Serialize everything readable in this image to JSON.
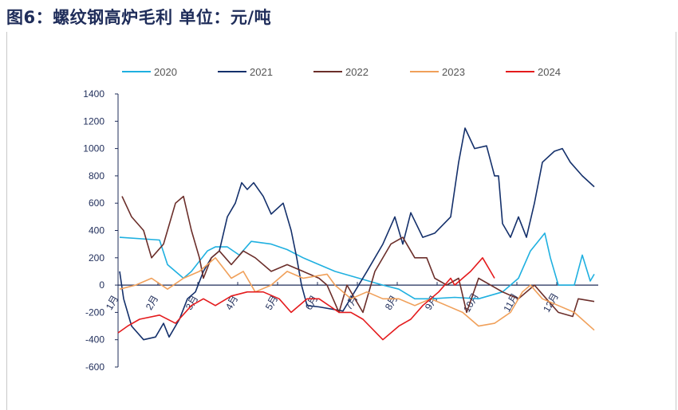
{
  "title": "图6：螺纹钢高炉毛利   单位：元/吨",
  "chart_data": {
    "type": "line",
    "title": "图6：螺纹钢高炉毛利   单位：元/吨",
    "xlabel": "",
    "ylabel": "",
    "ylim": [
      -600,
      1400
    ],
    "yticks": [
      1400,
      1200,
      1000,
      800,
      600,
      400,
      200,
      0,
      -200,
      -400,
      -600
    ],
    "xlim": [
      1,
      13
    ],
    "x_tick_labels": [
      "1月",
      "2月",
      "3月",
      "4月",
      "5月",
      "6月",
      "7月",
      "8月",
      "9月",
      "10月",
      "11月",
      "12月"
    ],
    "grid": false,
    "legend_position": "top",
    "series": [
      {
        "name": "2020",
        "color": "#1fb0e0",
        "points": [
          [
            1.04,
            350
          ],
          [
            2.04,
            330
          ],
          [
            2.24,
            150
          ],
          [
            2.64,
            50
          ],
          [
            2.84,
            100
          ],
          [
            3.24,
            250
          ],
          [
            3.44,
            280
          ],
          [
            3.74,
            280
          ],
          [
            4.04,
            220
          ],
          [
            4.34,
            320
          ],
          [
            4.84,
            300
          ],
          [
            5.24,
            260
          ],
          [
            5.64,
            200
          ],
          [
            6.04,
            150
          ],
          [
            6.44,
            100
          ],
          [
            7.04,
            50
          ],
          [
            7.64,
            0
          ],
          [
            8.04,
            -30
          ],
          [
            8.44,
            -100
          ],
          [
            8.84,
            -100
          ],
          [
            9.44,
            -90
          ],
          [
            10.04,
            -100
          ],
          [
            10.64,
            -50
          ],
          [
            11.04,
            50
          ],
          [
            11.34,
            250
          ],
          [
            11.7,
            380
          ],
          [
            11.84,
            200
          ],
          [
            12.04,
            0
          ],
          [
            12.44,
            0
          ],
          [
            12.64,
            220
          ],
          [
            12.84,
            30
          ],
          [
            12.94,
            80
          ]
        ]
      },
      {
        "name": "2021",
        "color": "#14306b",
        "points": [
          [
            1.04,
            100
          ],
          [
            1.14,
            -100
          ],
          [
            1.34,
            -300
          ],
          [
            1.64,
            -400
          ],
          [
            1.94,
            -380
          ],
          [
            2.14,
            -280
          ],
          [
            2.28,
            -380
          ],
          [
            2.54,
            -250
          ],
          [
            2.74,
            -100
          ],
          [
            2.94,
            -50
          ],
          [
            3.14,
            100
          ],
          [
            3.34,
            200
          ],
          [
            3.54,
            250
          ],
          [
            3.74,
            500
          ],
          [
            3.94,
            600
          ],
          [
            4.1,
            750
          ],
          [
            4.24,
            700
          ],
          [
            4.4,
            750
          ],
          [
            4.64,
            650
          ],
          [
            4.84,
            520
          ],
          [
            5.14,
            600
          ],
          [
            5.34,
            400
          ],
          [
            5.48,
            200
          ],
          [
            5.6,
            0
          ],
          [
            5.74,
            -150
          ],
          [
            6.04,
            -160
          ],
          [
            6.64,
            -190
          ],
          [
            7.24,
            100
          ],
          [
            7.64,
            300
          ],
          [
            7.94,
            500
          ],
          [
            8.14,
            300
          ],
          [
            8.34,
            530
          ],
          [
            8.64,
            350
          ],
          [
            8.94,
            380
          ],
          [
            9.34,
            500
          ],
          [
            9.54,
            900
          ],
          [
            9.7,
            1150
          ],
          [
            9.94,
            1000
          ],
          [
            10.24,
            1020
          ],
          [
            10.44,
            800
          ],
          [
            10.54,
            800
          ],
          [
            10.64,
            450
          ],
          [
            10.84,
            350
          ],
          [
            11.04,
            500
          ],
          [
            11.24,
            350
          ],
          [
            11.44,
            600
          ],
          [
            11.64,
            900
          ],
          [
            11.94,
            980
          ],
          [
            12.14,
            1000
          ],
          [
            12.34,
            900
          ],
          [
            12.64,
            800
          ],
          [
            12.94,
            720
          ]
        ]
      },
      {
        "name": "2022",
        "color": "#6b2e2a",
        "points": [
          [
            1.1,
            650
          ],
          [
            1.34,
            500
          ],
          [
            1.64,
            400
          ],
          [
            1.84,
            200
          ],
          [
            2.14,
            300
          ],
          [
            2.44,
            600
          ],
          [
            2.64,
            650
          ],
          [
            2.84,
            400
          ],
          [
            3.04,
            200
          ],
          [
            3.14,
            50
          ],
          [
            3.34,
            200
          ],
          [
            3.54,
            250
          ],
          [
            3.84,
            150
          ],
          [
            4.14,
            250
          ],
          [
            4.44,
            200
          ],
          [
            4.84,
            100
          ],
          [
            5.24,
            150
          ],
          [
            5.64,
            100
          ],
          [
            6.04,
            50
          ],
          [
            6.24,
            0
          ],
          [
            6.54,
            -200
          ],
          [
            6.74,
            0
          ],
          [
            6.94,
            -100
          ],
          [
            7.14,
            -200
          ],
          [
            7.44,
            100
          ],
          [
            7.84,
            300
          ],
          [
            8.14,
            350
          ],
          [
            8.44,
            200
          ],
          [
            8.74,
            200
          ],
          [
            8.94,
            50
          ],
          [
            9.24,
            0
          ],
          [
            9.54,
            50
          ],
          [
            9.74,
            -200
          ],
          [
            10.04,
            50
          ],
          [
            10.34,
            0
          ],
          [
            10.64,
            -50
          ],
          [
            11.04,
            -100
          ],
          [
            11.44,
            0
          ],
          [
            11.74,
            -100
          ],
          [
            12.04,
            -200
          ],
          [
            12.4,
            -230
          ],
          [
            12.54,
            -100
          ],
          [
            12.94,
            -120
          ]
        ]
      },
      {
        "name": "2023",
        "color": "#f0a05a",
        "points": [
          [
            1.04,
            -30
          ],
          [
            1.44,
            0
          ],
          [
            1.84,
            50
          ],
          [
            2.24,
            -30
          ],
          [
            2.64,
            50
          ],
          [
            3.04,
            100
          ],
          [
            3.44,
            200
          ],
          [
            3.84,
            50
          ],
          [
            4.14,
            100
          ],
          [
            4.44,
            -50
          ],
          [
            4.84,
            0
          ],
          [
            5.24,
            100
          ],
          [
            5.64,
            50
          ],
          [
            6.24,
            80
          ],
          [
            6.44,
            0
          ],
          [
            6.84,
            -100
          ],
          [
            7.24,
            -50
          ],
          [
            7.64,
            -100
          ],
          [
            8.04,
            -100
          ],
          [
            8.44,
            -150
          ],
          [
            8.84,
            -100
          ],
          [
            9.24,
            -150
          ],
          [
            9.64,
            -200
          ],
          [
            10.04,
            -300
          ],
          [
            10.44,
            -280
          ],
          [
            10.84,
            -200
          ],
          [
            11.14,
            -50
          ],
          [
            11.34,
            0
          ],
          [
            11.64,
            -100
          ],
          [
            12.04,
            -150
          ],
          [
            12.44,
            -200
          ],
          [
            12.94,
            -330
          ]
        ]
      },
      {
        "name": "2024",
        "color": "#e41a1c",
        "points": [
          [
            1.0,
            -350
          ],
          [
            1.24,
            -300
          ],
          [
            1.54,
            -250
          ],
          [
            2.04,
            -220
          ],
          [
            2.44,
            -280
          ],
          [
            2.84,
            -150
          ],
          [
            3.14,
            -100
          ],
          [
            3.44,
            -150
          ],
          [
            3.84,
            -80
          ],
          [
            4.24,
            -50
          ],
          [
            4.64,
            -50
          ],
          [
            5.04,
            -100
          ],
          [
            5.34,
            -200
          ],
          [
            5.74,
            -100
          ],
          [
            6.04,
            -100
          ],
          [
            6.54,
            -200
          ],
          [
            6.84,
            -200
          ],
          [
            7.14,
            -250
          ],
          [
            7.64,
            -400
          ],
          [
            8.04,
            -300
          ],
          [
            8.34,
            -250
          ],
          [
            8.64,
            -150
          ],
          [
            9.04,
            -50
          ],
          [
            9.34,
            50
          ],
          [
            9.44,
            0
          ],
          [
            9.84,
            100
          ],
          [
            10.14,
            200
          ],
          [
            10.34,
            100
          ],
          [
            10.44,
            50
          ]
        ]
      }
    ]
  }
}
